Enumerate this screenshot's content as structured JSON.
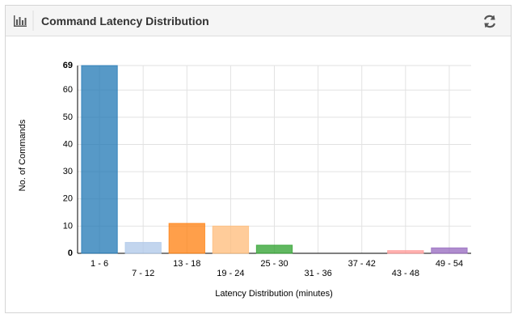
{
  "header": {
    "title": "Command Latency Distribution"
  },
  "chart_data": {
    "type": "bar",
    "categories": [
      "1 - 6",
      "7 - 12",
      "13 - 18",
      "19 - 24",
      "25 - 30",
      "31 - 36",
      "37 - 42",
      "43 - 48",
      "49 - 54"
    ],
    "values": [
      69,
      4,
      11,
      10,
      3,
      0,
      0,
      1,
      2
    ],
    "colors": [
      "#1f77b4",
      "#aec7e8",
      "#ff7f0e",
      "#ffbb78",
      "#2ca02c",
      "#98df8a",
      "#d62728",
      "#ff9896",
      "#9467bd"
    ],
    "x_label": "Latency Distribution (minutes)",
    "y_label": "No. of Commands",
    "ylim": [
      0,
      69
    ],
    "yticks": [
      0,
      10,
      20,
      30,
      40,
      50,
      60,
      69
    ],
    "grid": true
  }
}
